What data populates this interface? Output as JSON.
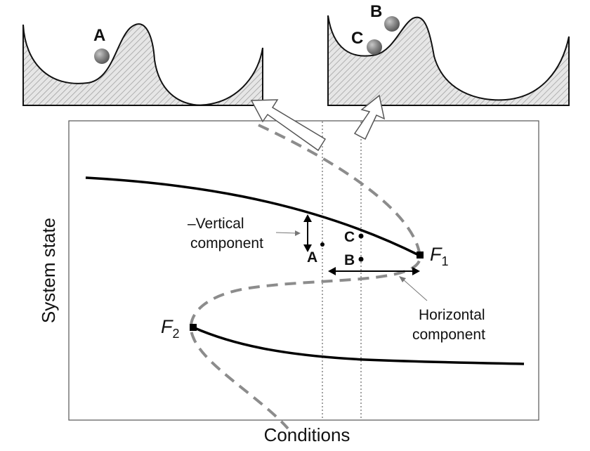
{
  "axes": {
    "x_label": "Conditions",
    "y_label": "System state"
  },
  "points": {
    "a": "A",
    "b": "B",
    "c": "C"
  },
  "bifurcations": {
    "f1": {
      "letter": "F",
      "sub": "1"
    },
    "f2": {
      "letter": "F",
      "sub": "2"
    }
  },
  "annotations": {
    "vertical_line1": "–Vertical",
    "vertical_line2": "component",
    "horizontal_line1": "Horizontal",
    "horizontal_line2": "component"
  },
  "landscape_left": {
    "ball_label": "A"
  },
  "landscape_right": {
    "ball_label_b": "B",
    "ball_label_c": "C"
  },
  "colors": {
    "stable_branch": "#000000",
    "unstable_branch": "#8c8c8c",
    "ball": "#7a7a7a",
    "hatch": "#9a9a9a"
  }
}
